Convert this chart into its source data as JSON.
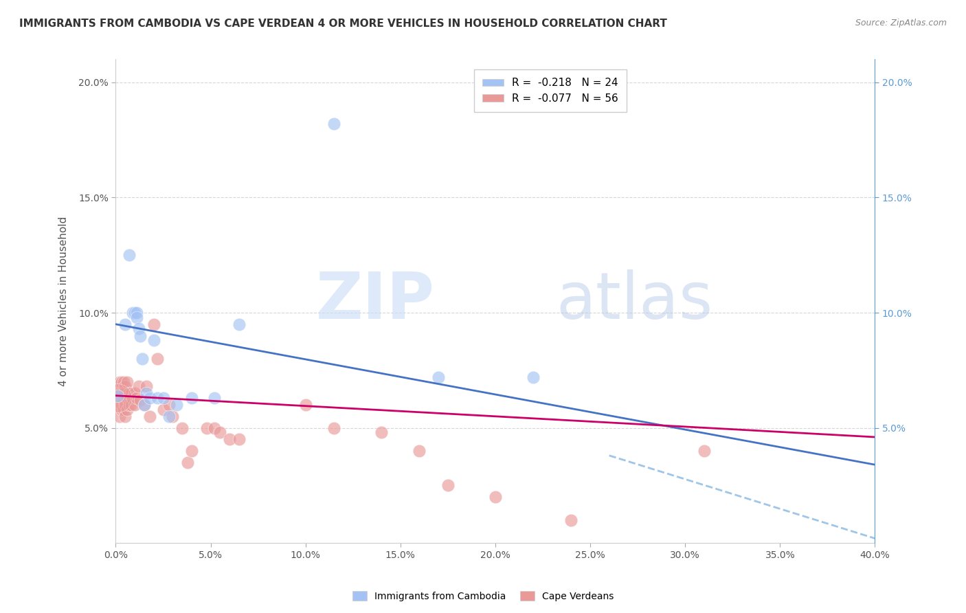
{
  "title": "IMMIGRANTS FROM CAMBODIA VS CAPE VERDEAN 4 OR MORE VEHICLES IN HOUSEHOLD CORRELATION CHART",
  "source": "Source: ZipAtlas.com",
  "xlabel": "",
  "ylabel": "4 or more Vehicles in Household",
  "xlim": [
    0.0,
    0.4
  ],
  "ylim": [
    0.0,
    0.21
  ],
  "xticks": [
    0.0,
    0.05,
    0.1,
    0.15,
    0.2,
    0.25,
    0.3,
    0.35,
    0.4
  ],
  "yticks_left": [
    0.05,
    0.1,
    0.15,
    0.2
  ],
  "yticks_right": [
    0.05,
    0.1,
    0.15,
    0.2
  ],
  "legend_r1": "-0.218",
  "legend_n1": "24",
  "legend_r2": "-0.077",
  "legend_n2": "56",
  "color_cambodia": "#a4c2f4",
  "color_cape_verdean": "#ea9999",
  "color_line_cambodia": "#4472c4",
  "color_line_cape_verdean": "#cc0066",
  "color_line_dashed": "#9fc5e8",
  "watermark_zip": "ZIP",
  "watermark_atlas": "atlas",
  "cambodia_x": [
    0.005,
    0.007,
    0.009,
    0.01,
    0.011,
    0.011,
    0.012,
    0.013,
    0.014,
    0.015,
    0.016,
    0.018,
    0.02,
    0.022,
    0.025,
    0.028,
    0.032,
    0.04,
    0.052,
    0.065,
    0.115,
    0.17,
    0.22,
    0.001
  ],
  "cambodia_y": [
    0.095,
    0.125,
    0.1,
    0.1,
    0.1,
    0.098,
    0.093,
    0.09,
    0.08,
    0.06,
    0.065,
    0.063,
    0.088,
    0.063,
    0.063,
    0.055,
    0.06,
    0.063,
    0.063,
    0.095,
    0.182,
    0.072,
    0.072,
    0.064
  ],
  "cape_verdean_x": [
    0.001,
    0.001,
    0.001,
    0.002,
    0.002,
    0.002,
    0.002,
    0.003,
    0.003,
    0.003,
    0.003,
    0.004,
    0.004,
    0.004,
    0.004,
    0.005,
    0.005,
    0.005,
    0.005,
    0.006,
    0.006,
    0.006,
    0.007,
    0.007,
    0.008,
    0.008,
    0.009,
    0.01,
    0.01,
    0.011,
    0.012,
    0.013,
    0.015,
    0.016,
    0.018,
    0.02,
    0.022,
    0.025,
    0.028,
    0.03,
    0.035,
    0.038,
    0.04,
    0.048,
    0.052,
    0.055,
    0.06,
    0.065,
    0.1,
    0.115,
    0.14,
    0.16,
    0.175,
    0.2,
    0.24,
    0.31
  ],
  "cape_verdean_y": [
    0.06,
    0.063,
    0.068,
    0.055,
    0.06,
    0.065,
    0.07,
    0.058,
    0.06,
    0.065,
    0.07,
    0.058,
    0.062,
    0.065,
    0.07,
    0.055,
    0.06,
    0.065,
    0.068,
    0.058,
    0.063,
    0.07,
    0.06,
    0.065,
    0.06,
    0.065,
    0.063,
    0.06,
    0.065,
    0.063,
    0.068,
    0.062,
    0.06,
    0.068,
    0.055,
    0.095,
    0.08,
    0.058,
    0.06,
    0.055,
    0.05,
    0.035,
    0.04,
    0.05,
    0.05,
    0.048,
    0.045,
    0.045,
    0.06,
    0.05,
    0.048,
    0.04,
    0.025,
    0.02,
    0.01,
    0.04
  ],
  "cambodia_trendline_x": [
    0.0,
    0.4
  ],
  "cambodia_trendline_y": [
    0.095,
    0.034
  ],
  "cape_verdean_trendline_x": [
    0.0,
    0.4
  ],
  "cape_verdean_trendline_y": [
    0.064,
    0.046
  ],
  "dashed_trendline_x": [
    0.26,
    0.4
  ],
  "dashed_trendline_y": [
    0.038,
    0.002
  ]
}
